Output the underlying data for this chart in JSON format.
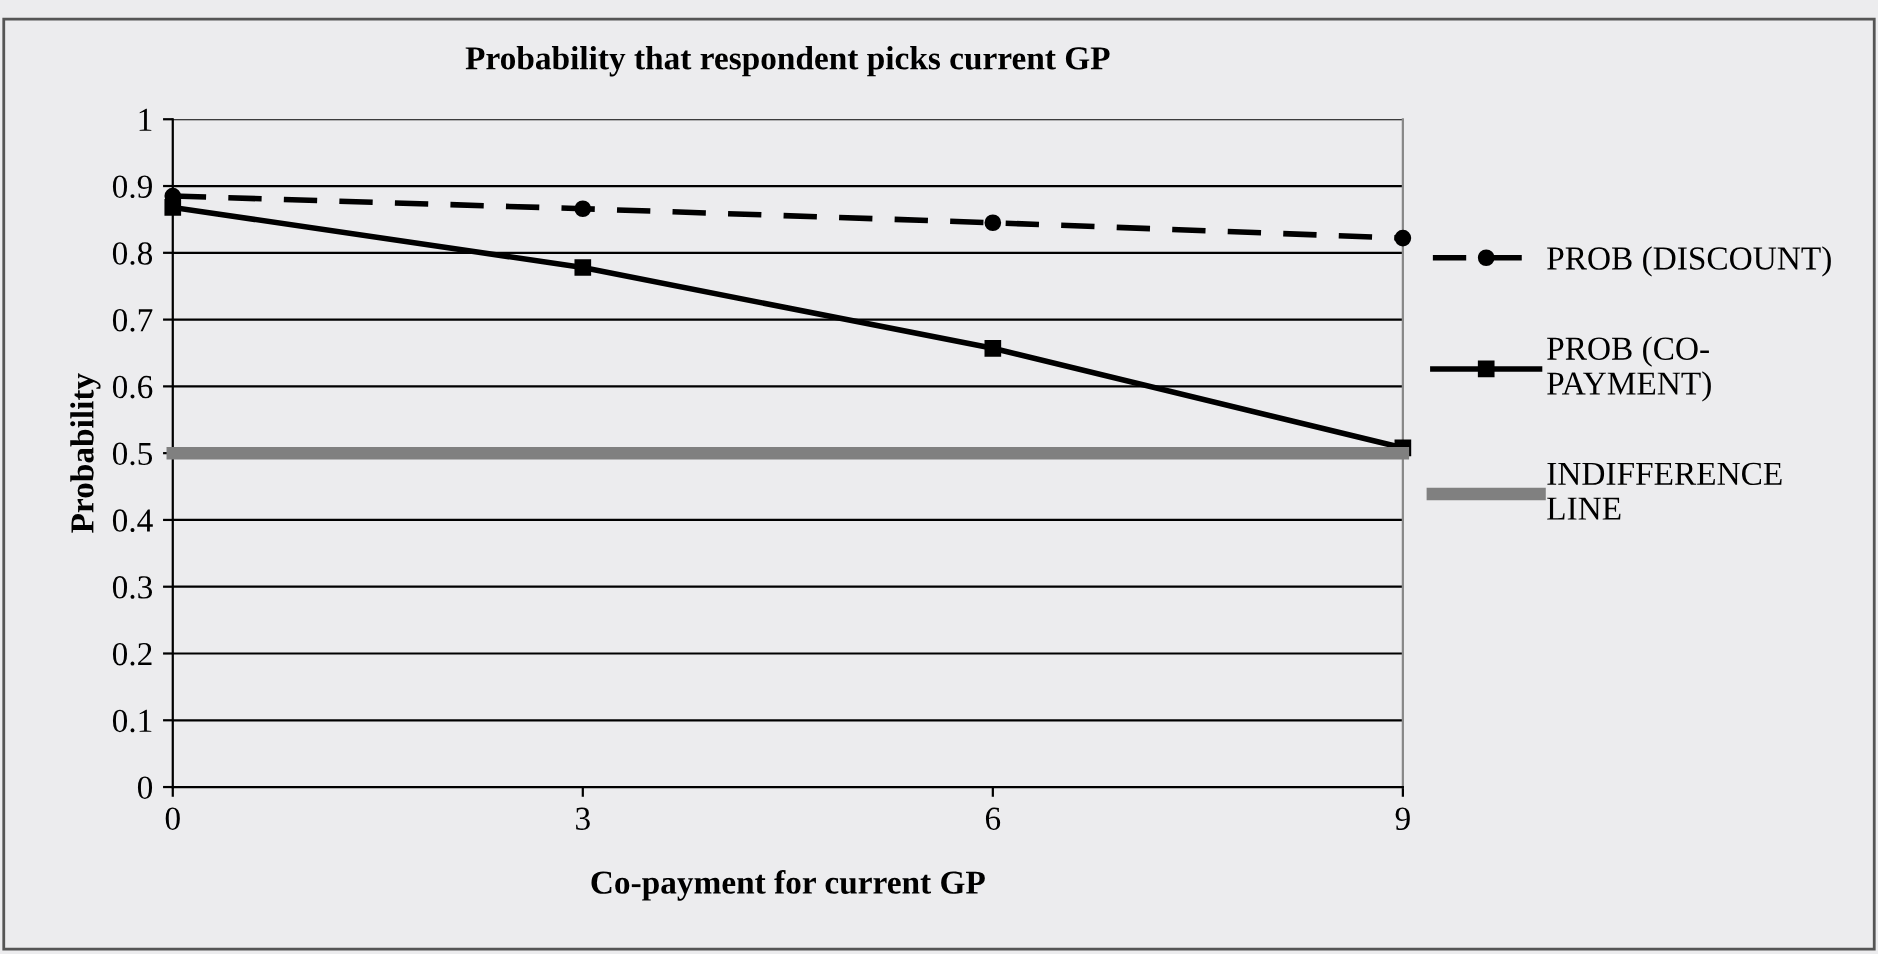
{
  "chart_data": {
    "type": "line",
    "title": "Probability that respondent picks current GP",
    "xlabel": "Co-payment for current GP",
    "ylabel": "Probability",
    "x": [
      0,
      3,
      6,
      9
    ],
    "xlim": [
      0,
      9
    ],
    "xticks": [
      0,
      3,
      6,
      9
    ],
    "ylim": [
      0,
      1
    ],
    "yticks": [
      0,
      0.1,
      0.2,
      0.3,
      0.4,
      0.5,
      0.6,
      0.7,
      0.8,
      0.9,
      1
    ],
    "grid": "y",
    "legend": "right",
    "series": [
      {
        "name": "PROB (DISCOUNT)",
        "color": "#000000",
        "values": [
          0.885,
          0.866,
          0.845,
          0.822
        ],
        "marker": "circle",
        "line_style": "dashed"
      },
      {
        "name": "PROB (CO-PAYMENT)",
        "color": "#000000",
        "values": [
          0.868,
          0.778,
          0.657,
          0.508
        ],
        "marker": "square",
        "line_style": "solid"
      },
      {
        "name": "INDIFFERENCE LINE",
        "color": "#808080",
        "values": [
          0.5,
          0.5,
          0.5,
          0.5
        ],
        "marker": "none",
        "line_style": "solid"
      }
    ]
  }
}
